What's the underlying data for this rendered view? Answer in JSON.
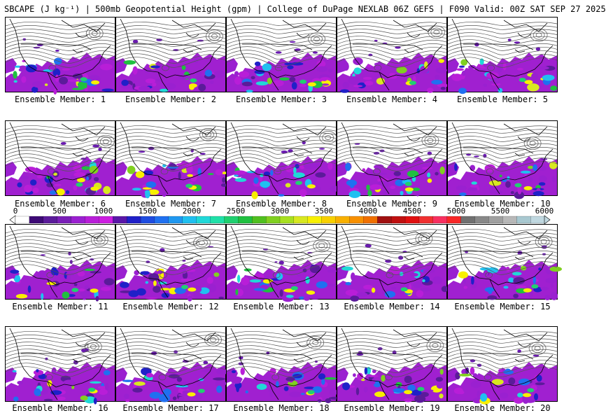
{
  "title": "SBCAPE (J kg⁻¹) | 500mb Geopotential Height (gpm) | College of DuPage NEXLAB 06Z GEFS | F090 Valid: 00Z SAT SEP 27 2025",
  "members": [
    {
      "label": "Ensemble Member: 1"
    },
    {
      "label": "Ensemble Member: 2"
    },
    {
      "label": "Ensemble Member: 3"
    },
    {
      "label": "Ensemble Member: 4"
    },
    {
      "label": "Ensemble Member: 5"
    },
    {
      "label": "Ensemble Member: 6"
    },
    {
      "label": "Ensemble Member: 7"
    },
    {
      "label": "Ensemble Member: 8"
    },
    {
      "label": "Ensemble Member: 9"
    },
    {
      "label": "Ensemble Member: 10"
    },
    {
      "label": "Ensemble Member: 11"
    },
    {
      "label": "Ensemble Member: 12"
    },
    {
      "label": "Ensemble Member: 13"
    },
    {
      "label": "Ensemble Member: 14"
    },
    {
      "label": "Ensemble Member: 15"
    },
    {
      "label": "Ensemble Member: 16"
    },
    {
      "label": "Ensemble Member: 17"
    },
    {
      "label": "Ensemble Member: 18"
    },
    {
      "label": "Ensemble Member: 19"
    },
    {
      "label": "Ensemble Member: 20"
    }
  ],
  "colorbar": {
    "min": 0,
    "max": 6000,
    "tick_labels": [
      "0",
      "500",
      "1000",
      "1500",
      "2000",
      "2500",
      "3000",
      "3500",
      "4000",
      "4500",
      "5000",
      "5500",
      "6000"
    ],
    "colors": [
      "#ffffff",
      "#3d0a75",
      "#5b1b9a",
      "#7a1fb8",
      "#9a20d0",
      "#b81ed8",
      "#cc1ee0",
      "#5a16a8",
      "#2020c8",
      "#1e4ce0",
      "#2070f0",
      "#2098f0",
      "#20c0f0",
      "#20d8d8",
      "#20e0a8",
      "#20d070",
      "#20c040",
      "#50c020",
      "#80d020",
      "#a8e020",
      "#d8e820",
      "#f8f000",
      "#f8d000",
      "#f8b000",
      "#f89000",
      "#f07000",
      "#a01010",
      "#c01010",
      "#e01010",
      "#f03030",
      "#f83060",
      "#f82828",
      "#707070",
      "#888888",
      "#a0a0a0",
      "#b8b8b8",
      "#a8c8d0",
      "#c0d8e0"
    ],
    "colors_note": "color steps of the SBCAPE shading scale"
  }
}
